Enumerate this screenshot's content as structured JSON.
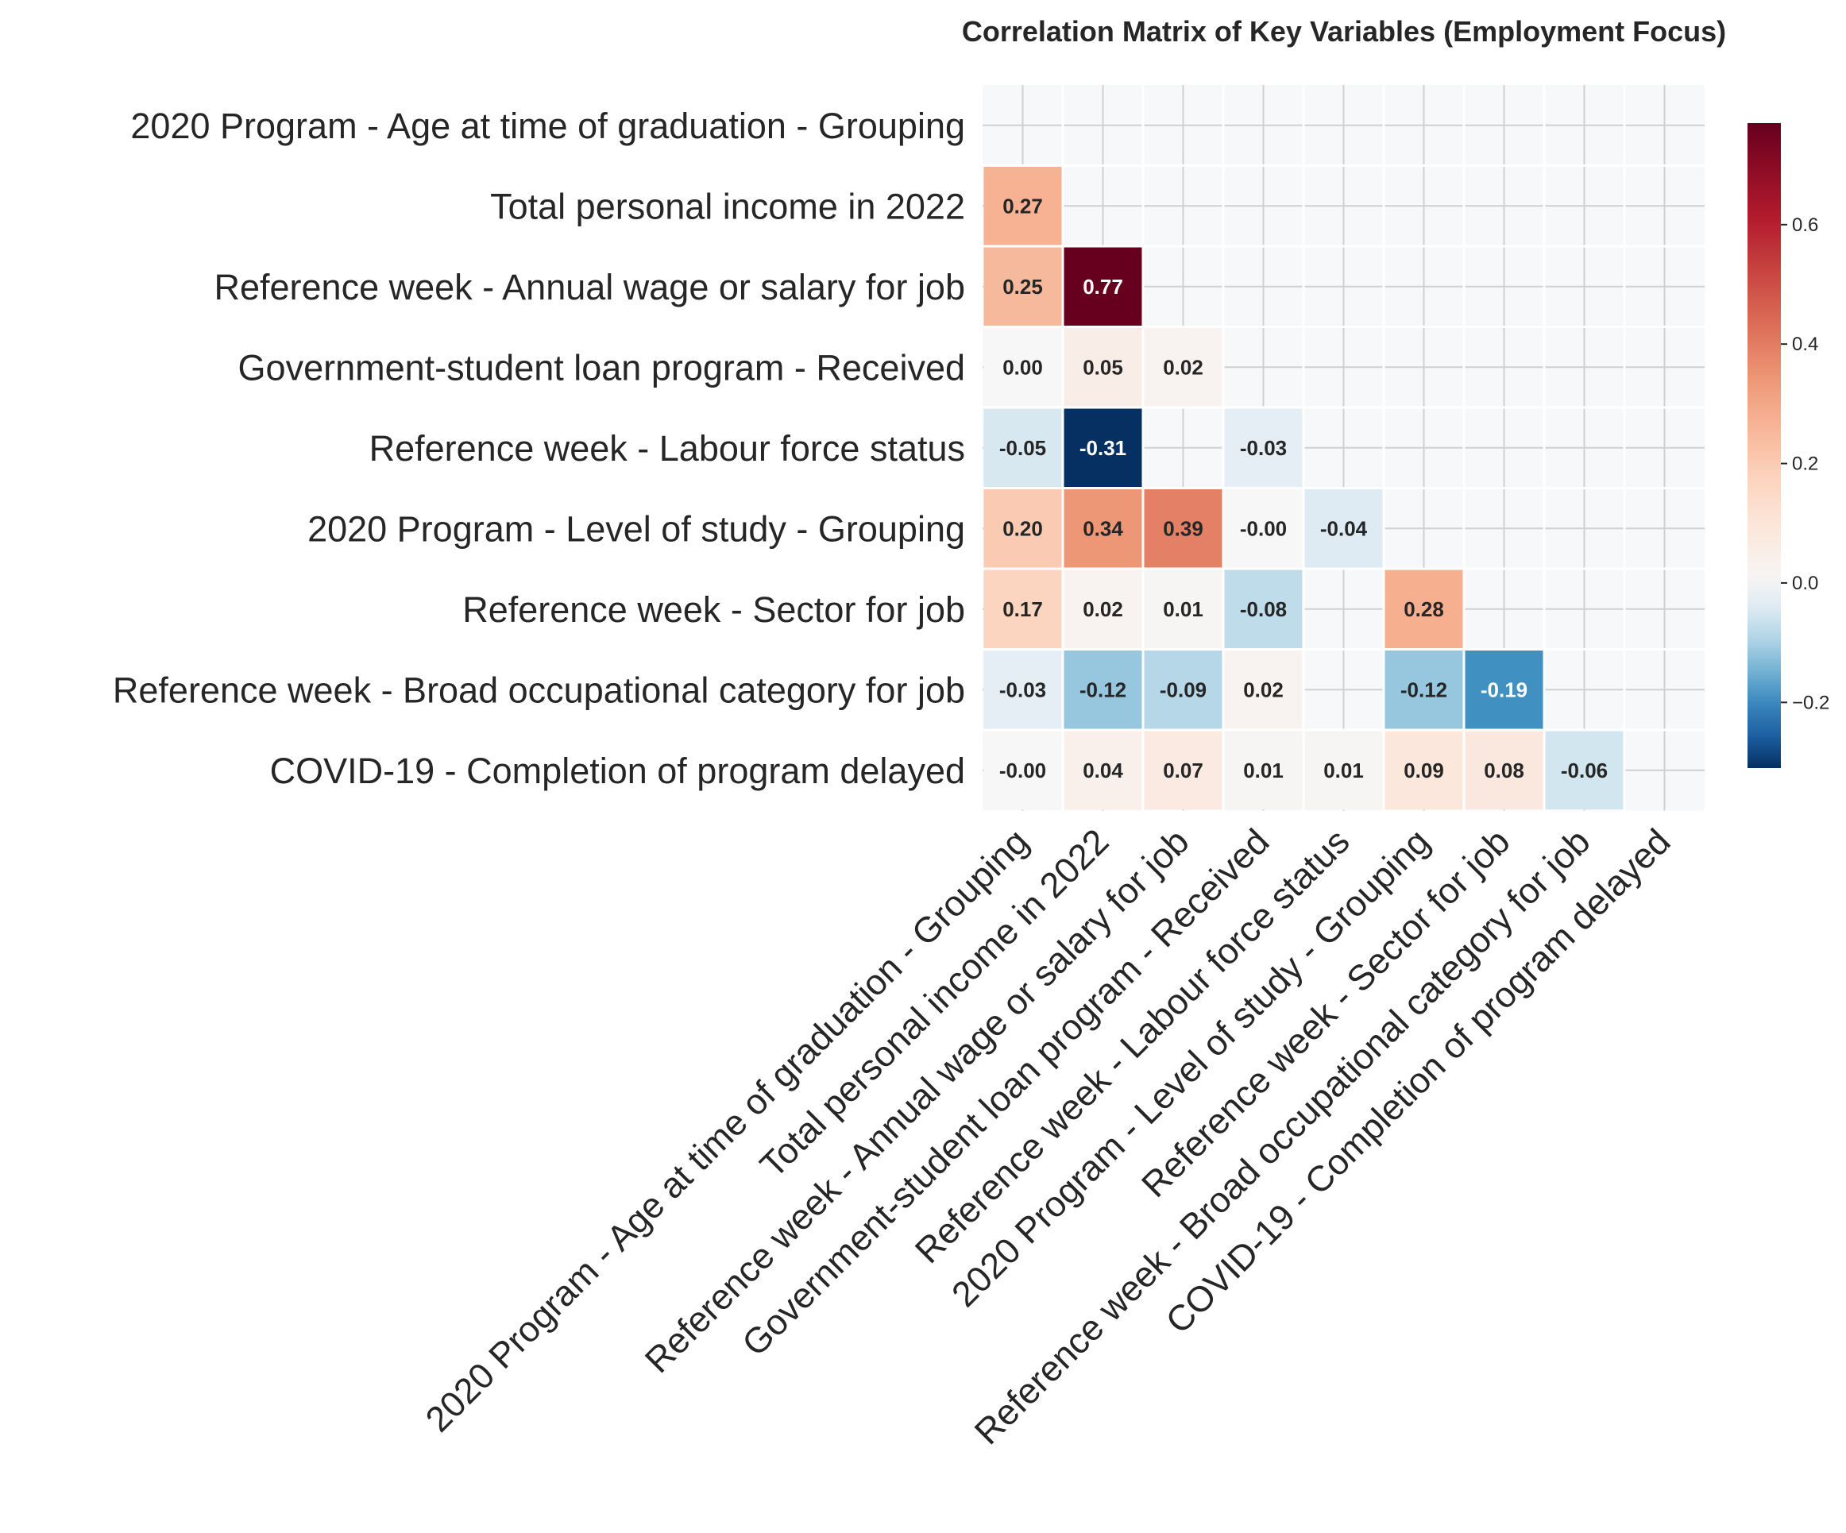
{
  "chart_data": {
    "type": "heatmap",
    "title": "Correlation Matrix of Key Variables (Employment Focus)",
    "variables": [
      "2020 Program - Age at time of graduation - Grouping",
      "Total personal income in 2022",
      "Reference week - Annual wage or salary for job",
      "Government-student loan program - Received",
      "Reference week - Labour force status",
      "2020 Program - Level of study - Grouping",
      "Reference week - Sector for job",
      "Reference week - Broad occupational category for job",
      "COVID-19 - Completion of program delayed"
    ],
    "mask": "upper-triangle-including-diagonal",
    "matrix": [
      [
        null,
        null,
        null,
        null,
        null,
        null,
        null,
        null,
        null
      ],
      [
        0.27,
        null,
        null,
        null,
        null,
        null,
        null,
        null,
        null
      ],
      [
        0.25,
        0.77,
        null,
        null,
        null,
        null,
        null,
        null,
        null
      ],
      [
        0.0,
        0.05,
        0.02,
        null,
        null,
        null,
        null,
        null,
        null
      ],
      [
        -0.05,
        -0.31,
        null,
        -0.03,
        null,
        null,
        null,
        null,
        null
      ],
      [
        0.2,
        0.34,
        0.39,
        -0.0,
        -0.04,
        null,
        null,
        null,
        null
      ],
      [
        0.17,
        0.02,
        0.01,
        -0.08,
        null,
        0.28,
        null,
        null,
        null
      ],
      [
        -0.03,
        -0.12,
        -0.09,
        0.02,
        null,
        -0.12,
        -0.19,
        null,
        null
      ],
      [
        -0.0,
        0.04,
        0.07,
        0.01,
        0.01,
        0.09,
        0.08,
        -0.06,
        null
      ]
    ],
    "labels": [
      [
        null,
        null,
        null,
        null,
        null,
        null,
        null,
        null,
        null
      ],
      [
        "0.27",
        null,
        null,
        null,
        null,
        null,
        null,
        null,
        null
      ],
      [
        "0.25",
        "0.77",
        null,
        null,
        null,
        null,
        null,
        null,
        null
      ],
      [
        "0.00",
        "0.05",
        "0.02",
        null,
        null,
        null,
        null,
        null,
        null
      ],
      [
        "-0.05",
        "-0.31",
        null,
        "-0.03",
        null,
        null,
        null,
        null,
        null
      ],
      [
        "0.20",
        "0.34",
        "0.39",
        "-0.00",
        "-0.04",
        null,
        null,
        null,
        null
      ],
      [
        "0.17",
        "0.02",
        "0.01",
        "-0.08",
        null,
        "0.28",
        null,
        null,
        null
      ],
      [
        "-0.03",
        "-0.12",
        "-0.09",
        "0.02",
        null,
        "-0.12",
        "-0.19",
        null,
        null
      ],
      [
        "-0.00",
        "0.04",
        "0.07",
        "0.01",
        "0.01",
        "0.09",
        "0.08",
        "-0.06",
        null
      ]
    ],
    "colorbar": {
      "colormap": "RdBu_r",
      "range": [
        -0.31,
        0.77
      ],
      "ticks": [
        -0.2,
        0.0,
        0.2,
        0.4,
        0.6
      ],
      "tick_labels": [
        "−0.2",
        "0.0",
        "0.2",
        "0.4",
        "0.6"
      ]
    },
    "grid": true,
    "colors": {
      "background": "#f7f8fa",
      "grid": "#d0d0d0",
      "text": "#262626"
    }
  }
}
